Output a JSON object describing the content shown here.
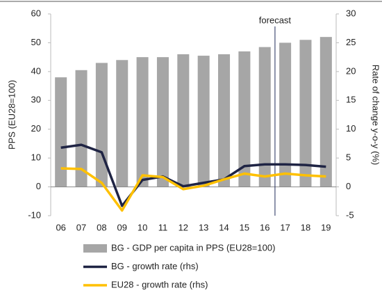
{
  "chart_data": {
    "type": "bar-line",
    "categories": [
      "06",
      "07",
      "08",
      "09",
      "10",
      "11",
      "12",
      "13",
      "14",
      "15",
      "16",
      "17",
      "18",
      "19"
    ],
    "ylabel": "PPS (EU28=100)",
    "y2label": "Rate of change y-o-y (%)",
    "ylim": [
      -10,
      60
    ],
    "yticks": [
      -10,
      0,
      10,
      20,
      30,
      40,
      50,
      60
    ],
    "y2lim": [
      -5,
      30
    ],
    "y2ticks": [
      -5,
      0,
      5,
      10,
      15,
      20,
      25,
      30
    ],
    "annotation": "forecast",
    "series": [
      {
        "name": "BG - GDP per capita in PPS (EU28=100)",
        "kind": "bar",
        "color": "#a6a6a6",
        "values": [
          38,
          40.5,
          43,
          44,
          45,
          45,
          46,
          45.5,
          46,
          47,
          48.5,
          50,
          51,
          52
        ]
      },
      {
        "name": "BG - growth rate (rhs)",
        "kind": "line",
        "axis": "y2",
        "color": "#1f2444",
        "values": [
          6.8,
          7.3,
          6.0,
          -3.3,
          1.2,
          1.8,
          0.1,
          0.7,
          1.3,
          3.6,
          3.9,
          3.9,
          3.8,
          3.5
        ]
      },
      {
        "name": "EU28 - growth rate (rhs)",
        "kind": "line",
        "axis": "y2",
        "color": "#ffc000",
        "values": [
          3.2,
          3.1,
          0.7,
          -4.1,
          2.0,
          1.7,
          -0.4,
          0.2,
          1.3,
          2.3,
          1.8,
          2.3,
          2.0,
          1.8
        ]
      }
    ]
  }
}
